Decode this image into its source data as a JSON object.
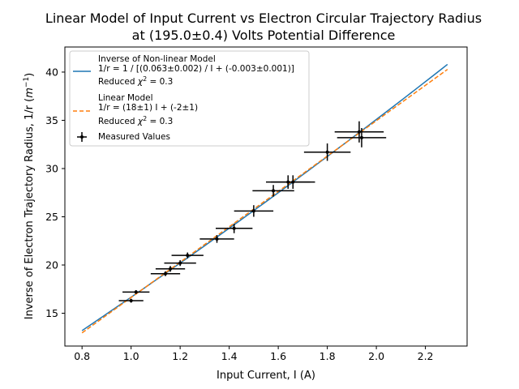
{
  "chart_data": {
    "type": "scatter",
    "title_line1": "Linear Model of Input Current vs Electron Circular Trajectory Radius",
    "title_line2": "at (195.0±0.4) Volts Potential Difference",
    "xlabel": "Input Current, I (A)",
    "ylabel_main": "Inverse of Electron Trajectory Radius, 1/r (",
    "ylabel_unit": "m",
    "ylabel_exp": "−1",
    "ylabel_close": ")",
    "xlim": [
      0.73,
      2.37
    ],
    "ylim": [
      11.6,
      42.6
    ],
    "xticks": [
      0.8,
      1.0,
      1.2,
      1.4,
      1.6,
      1.8,
      2.0,
      2.2
    ],
    "xtick_labels": [
      "0.8",
      "1.0",
      "1.2",
      "1.4",
      "1.6",
      "1.8",
      "2.0",
      "2.2"
    ],
    "yticks": [
      15,
      20,
      25,
      30,
      35,
      40
    ],
    "ytick_labels": [
      "15",
      "20",
      "25",
      "30",
      "35",
      "40"
    ],
    "colors": {
      "nonlinear": "#1f77b4",
      "linear": "#ff7f0e",
      "measured": "#000000"
    },
    "nonlinear_model": {
      "a": 0.063,
      "b": -0.003,
      "x_range": [
        0.8,
        2.29
      ]
    },
    "linear_model": {
      "slope": 18.33,
      "intercept": -1.7,
      "x_range": [
        0.8,
        2.29
      ]
    },
    "measured": [
      {
        "x": 1.0,
        "y": 16.3,
        "xerr": 0.05,
        "yerr": 0.2
      },
      {
        "x": 1.02,
        "y": 17.2,
        "xerr": 0.055,
        "yerr": 0.2
      },
      {
        "x": 1.14,
        "y": 19.1,
        "xerr": 0.06,
        "yerr": 0.25
      },
      {
        "x": 1.16,
        "y": 19.6,
        "xerr": 0.06,
        "yerr": 0.3
      },
      {
        "x": 1.2,
        "y": 20.2,
        "xerr": 0.065,
        "yerr": 0.3
      },
      {
        "x": 1.23,
        "y": 21.0,
        "xerr": 0.065,
        "yerr": 0.3
      },
      {
        "x": 1.35,
        "y": 22.7,
        "xerr": 0.07,
        "yerr": 0.4
      },
      {
        "x": 1.42,
        "y": 23.8,
        "xerr": 0.075,
        "yerr": 0.5
      },
      {
        "x": 1.5,
        "y": 25.6,
        "xerr": 0.08,
        "yerr": 0.6
      },
      {
        "x": 1.58,
        "y": 27.7,
        "xerr": 0.085,
        "yerr": 0.6
      },
      {
        "x": 1.64,
        "y": 28.6,
        "xerr": 0.09,
        "yerr": 0.7
      },
      {
        "x": 1.66,
        "y": 28.6,
        "xerr": 0.09,
        "yerr": 0.7
      },
      {
        "x": 1.8,
        "y": 31.7,
        "xerr": 0.095,
        "yerr": 0.9
      },
      {
        "x": 1.93,
        "y": 33.8,
        "xerr": 0.1,
        "yerr": 1.1
      },
      {
        "x": 1.94,
        "y": 33.2,
        "xerr": 0.1,
        "yerr": 1.0
      }
    ],
    "legend": {
      "position": "upper-left",
      "nonlinear": {
        "line1": "Inverse of Non-linear Model",
        "line2": "1/r = 1 / [(0.063±0.002) / I + (-0.003±0.001)]",
        "chi_prefix": "Reduced ",
        "chi_symbol": "χ",
        "chi_exp": "2",
        "chi_suffix": " = 0.3"
      },
      "linear": {
        "line1": "Linear Model",
        "line2": "1/r = (18±1) I + (-2±1)",
        "chi_prefix": "Reduced ",
        "chi_symbol": "χ",
        "chi_exp": "2",
        "chi_suffix": " = 0.3"
      },
      "measured": {
        "label": "Measured Values"
      }
    }
  }
}
